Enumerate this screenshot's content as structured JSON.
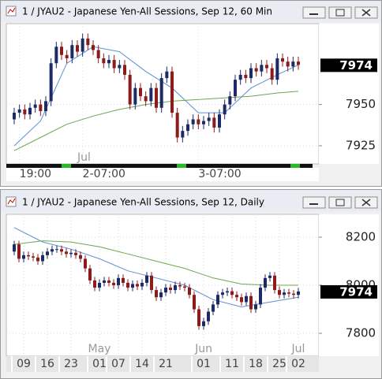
{
  "chart_data": [
    {
      "type": "candlestick",
      "title": "1 / JYAU2 - Japanese Yen-All Sessions, Sep 12, 60 Min",
      "up_color": "#1c2a66",
      "down_color": "#8c1c1c",
      "grid": true,
      "open": [
        7941,
        7945,
        7947,
        7944,
        7948,
        7950,
        7946,
        7952,
        7975,
        7985,
        7980,
        7978,
        7986,
        7982,
        7990,
        7986,
        7983,
        7978,
        7975,
        7977,
        7972,
        7974,
        7968,
        7950,
        7960,
        7955,
        7952,
        7960,
        7948,
        7966,
        7970,
        7945,
        7930,
        7934,
        7938,
        7941,
        7938,
        7940,
        7942,
        7936,
        7944,
        7950,
        7955,
        7965,
        7968,
        7966,
        7972,
        7970,
        7974,
        7972,
        7965,
        7978,
        7976,
        7973,
        7976
      ],
      "high": [
        7948,
        7950,
        7950,
        7951,
        7953,
        7953,
        7955,
        7978,
        7988,
        7988,
        7983,
        7989,
        7989,
        7993,
        7993,
        7989,
        7986,
        7981,
        7980,
        7980,
        7977,
        7977,
        7971,
        7963,
        7963,
        7958,
        7963,
        7963,
        7969,
        7973,
        7973,
        7948,
        7937,
        7941,
        7944,
        7944,
        7943,
        7945,
        7945,
        7947,
        7953,
        7958,
        7968,
        7971,
        7971,
        7975,
        7975,
        7977,
        7977,
        7975,
        7981,
        7981,
        7979,
        7979,
        7979
      ],
      "low": [
        7938,
        7942,
        7941,
        7941,
        7945,
        7943,
        7943,
        7949,
        7972,
        7977,
        7975,
        7975,
        7979,
        7979,
        7983,
        7980,
        7975,
        7972,
        7972,
        7969,
        7969,
        7965,
        7947,
        7947,
        7952,
        7949,
        7949,
        7945,
        7945,
        7963,
        7942,
        7927,
        7927,
        7931,
        7935,
        7935,
        7935,
        7937,
        7933,
        7933,
        7941,
        7947,
        7952,
        7962,
        7963,
        7963,
        7967,
        7967,
        7969,
        7962,
        7962,
        7973,
        7970,
        7970,
        7971
      ],
      "close": [
        7945,
        7947,
        7944,
        7948,
        7950,
        7946,
        7952,
        7975,
        7985,
        7980,
        7978,
        7986,
        7982,
        7990,
        7986,
        7983,
        7978,
        7975,
        7977,
        7972,
        7974,
        7968,
        7950,
        7960,
        7955,
        7952,
        7960,
        7948,
        7966,
        7970,
        7945,
        7930,
        7934,
        7938,
        7941,
        7938,
        7940,
        7942,
        7936,
        7944,
        7950,
        7955,
        7965,
        7968,
        7966,
        7972,
        7970,
        7974,
        7972,
        7965,
        7978,
        7976,
        7973,
        7976,
        7974
      ],
      "ma": [
        {
          "color": "#5b8fd6",
          "x": [
            0,
            5,
            10,
            15,
            20,
            25,
            30,
            35,
            40,
            45,
            50,
            54
          ],
          "values": [
            7925,
            7940,
            7975,
            7985,
            7982,
            7970,
            7960,
            7945,
            7945,
            7960,
            7968,
            7974
          ]
        },
        {
          "color": "#6aa84f",
          "x": [
            0,
            5,
            10,
            15,
            20,
            25,
            30,
            35,
            40,
            45,
            50,
            54
          ],
          "values": [
            7922,
            7930,
            7938,
            7943,
            7947,
            7950,
            7952,
            7953,
            7954,
            7955,
            7957,
            7958
          ]
        }
      ],
      "ylim": [
        7914,
        7999
      ],
      "yticks": [
        7925,
        7950
      ],
      "last_price": 7974,
      "xticks": [
        {
          "value": 1,
          "label": "19:00"
        },
        {
          "value": 13,
          "label": "2-07:00"
        },
        {
          "value": 35,
          "label": "3-07:00"
        }
      ],
      "month_labels": [
        {
          "value": 12,
          "label": "Jul"
        }
      ]
    },
    {
      "type": "candlestick",
      "title": "1 / JYAU2 - Japanese Yen-All Sessions, Sep 12, Daily",
      "up_color": "#1c2a66",
      "down_color": "#8c1c1c",
      "grid": true,
      "open": [
        8140,
        8170,
        8110,
        8125,
        8120,
        8115,
        8100,
        8125,
        8140,
        8150,
        8150,
        8140,
        8130,
        8135,
        8125,
        8110,
        8070,
        8020,
        7990,
        8010,
        8020,
        8010,
        8000,
        8030,
        8010,
        7990,
        8005,
        7995,
        8010,
        8040,
        7980,
        7950,
        7970,
        7990,
        7980,
        8000,
        7995,
        7990,
        7960,
        7900,
        7830,
        7850,
        7890,
        7920,
        7960,
        7970,
        7975,
        7960,
        7950,
        7930,
        7955,
        7900,
        7920,
        7990,
        8030,
        8040,
        7980,
        7960,
        7970,
        7965,
        7960
      ],
      "high": [
        8185,
        8185,
        8140,
        8140,
        8135,
        8130,
        8140,
        8155,
        8165,
        8165,
        8165,
        8155,
        8150,
        8150,
        8140,
        8125,
        8085,
        8035,
        8025,
        8035,
        8035,
        8025,
        8045,
        8045,
        8025,
        8020,
        8020,
        8025,
        8055,
        8055,
        7995,
        7985,
        8005,
        8005,
        8015,
        8015,
        8010,
        8005,
        7975,
        7915,
        7865,
        7905,
        7935,
        7975,
        7985,
        7990,
        7990,
        7975,
        7965,
        7970,
        7970,
        7935,
        8005,
        8045,
        8055,
        8055,
        7995,
        7985,
        7985,
        7980,
        7989
      ],
      "low": [
        8125,
        8095,
        8095,
        8105,
        8100,
        8085,
        8085,
        8110,
        8125,
        8135,
        8125,
        8115,
        8115,
        8110,
        8095,
        8055,
        8005,
        7975,
        7975,
        7995,
        7995,
        7985,
        7985,
        7995,
        7975,
        7975,
        7980,
        7980,
        7995,
        7965,
        7935,
        7935,
        7955,
        7965,
        7965,
        7980,
        7975,
        7945,
        7885,
        7815,
        7815,
        7835,
        7875,
        7905,
        7945,
        7955,
        7945,
        7935,
        7915,
        7915,
        7885,
        7885,
        7905,
        7975,
        8015,
        7965,
        7945,
        7945,
        7950,
        7945,
        7945
      ],
      "close": [
        8170,
        8110,
        8125,
        8120,
        8115,
        8100,
        8125,
        8140,
        8150,
        8150,
        8140,
        8130,
        8135,
        8125,
        8110,
        8070,
        8020,
        7990,
        8010,
        8020,
        8010,
        8000,
        8030,
        8010,
        7990,
        8005,
        7995,
        8010,
        8040,
        7980,
        7950,
        7970,
        7990,
        7980,
        8000,
        7995,
        7990,
        7960,
        7900,
        7830,
        7850,
        7890,
        7920,
        7960,
        7970,
        7975,
        7960,
        7950,
        7930,
        7955,
        7900,
        7920,
        7990,
        8030,
        8040,
        7980,
        7960,
        7970,
        7965,
        7960,
        7974
      ],
      "ma": [
        {
          "color": "#5b8fd6",
          "x": [
            0,
            6,
            12,
            18,
            24,
            30,
            36,
            42,
            48,
            54,
            60
          ],
          "values": [
            8240,
            8180,
            8150,
            8110,
            8060,
            8030,
            8000,
            7940,
            7910,
            7930,
            7950
          ]
        },
        {
          "color": "#6aa84f",
          "x": [
            0,
            6,
            12,
            18,
            24,
            30,
            36,
            42,
            48,
            54,
            60
          ],
          "values": [
            8170,
            8185,
            8180,
            8160,
            8130,
            8100,
            8070,
            8030,
            8005,
            8000,
            8000
          ]
        }
      ],
      "ylim": [
        7705,
        8295
      ],
      "yticks": [
        7800,
        8000,
        8200
      ],
      "last_price": 7974,
      "xticks": [
        {
          "value": 2,
          "label": "09"
        },
        {
          "value": 7,
          "label": "16"
        },
        {
          "value": 12,
          "label": "23"
        },
        {
          "value": 18,
          "label": "01"
        },
        {
          "value": 22,
          "label": "07"
        },
        {
          "value": 27,
          "label": "14"
        },
        {
          "value": 32,
          "label": "21"
        },
        {
          "value": 40,
          "label": "01"
        },
        {
          "value": 46,
          "label": "11"
        },
        {
          "value": 51,
          "label": "18"
        },
        {
          "value": 56,
          "label": "25"
        },
        {
          "value": 60,
          "label": "02"
        }
      ],
      "month_labels": [
        {
          "value": 18,
          "label": "May"
        },
        {
          "value": 40,
          "label": "Jun"
        },
        {
          "value": 60,
          "label": "Jul"
        }
      ]
    }
  ]
}
